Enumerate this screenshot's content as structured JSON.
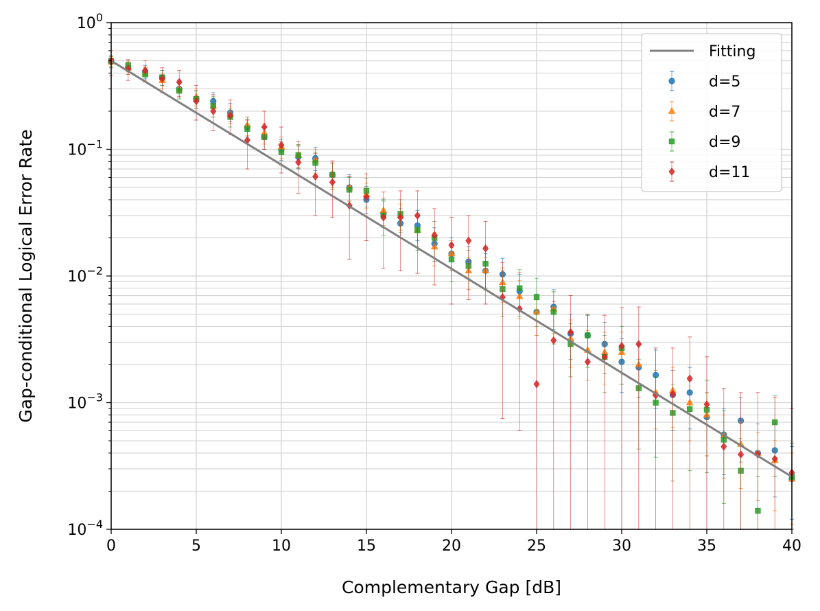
{
  "chart_data": {
    "type": "scatter",
    "xlabel": "Complementary Gap [dB]",
    "ylabel": "Gap-conditional Logical Error Rate",
    "xlim": [
      0,
      40
    ],
    "ylim": [
      0.0001,
      1
    ],
    "yscale": "log",
    "grid": "major and minor, both axes",
    "legend_placement": "top-right",
    "x_ticks": [
      "0",
      "5",
      "10",
      "15",
      "20",
      "25",
      "30",
      "35",
      "40"
    ],
    "y_ticks": [
      {
        "base": "10",
        "exp": "0",
        "value": 1
      },
      {
        "base": "10",
        "exp": "−1",
        "value": 0.1
      },
      {
        "base": "10",
        "exp": "−2",
        "value": 0.01
      },
      {
        "base": "10",
        "exp": "−3",
        "value": 0.001
      },
      {
        "base": "10",
        "exp": "−4",
        "value": 0.0001
      }
    ],
    "fit": {
      "name": "Fitting",
      "color": "#808080",
      "x": [
        0,
        40
      ],
      "y": [
        0.5,
        0.00026
      ]
    },
    "series": [
      {
        "name": "d=5",
        "marker": "circle",
        "color": "#1f77b4",
        "x": [
          0,
          1,
          2,
          3,
          4,
          5,
          6,
          7,
          8,
          9,
          10,
          11,
          12,
          13,
          14,
          15,
          16,
          17,
          18,
          19,
          20,
          21,
          22,
          23,
          24,
          25,
          26,
          27,
          28,
          29,
          30,
          31,
          32,
          33,
          34,
          35,
          36,
          37,
          38,
          39,
          40
        ],
        "y": [
          0.49,
          0.44,
          0.41,
          0.37,
          0.3,
          0.25,
          0.24,
          0.195,
          0.15,
          0.125,
          0.1,
          0.087,
          0.085,
          0.063,
          0.05,
          0.04,
          0.031,
          0.026,
          0.025,
          0.018,
          0.015,
          0.013,
          0.011,
          0.0103,
          0.0076,
          0.0052,
          0.0057,
          0.0035,
          0.0034,
          0.0029,
          0.0021,
          0.0019,
          0.00165,
          0.00115,
          0.0012,
          0.00077,
          0.00056,
          0.00072,
          0.0004,
          0.00042,
          0.00025
        ],
        "err_lo": [
          0.44,
          0.39,
          0.36,
          0.32,
          0.26,
          0.21,
          0.2,
          0.165,
          0.125,
          0.1,
          0.082,
          0.07,
          0.068,
          0.05,
          0.039,
          0.031,
          0.024,
          0.02,
          0.019,
          0.013,
          0.011,
          0.0095,
          0.008,
          0.0075,
          0.0053,
          0.0034,
          0.0038,
          0.0022,
          0.0021,
          0.0017,
          0.0012,
          0.0011,
          0.0009,
          0.0006,
          0.00062,
          0.00038,
          0.00027,
          0.00034,
          0.00017,
          0.00018,
          0.00012
        ],
        "err_hi": [
          0.54,
          0.49,
          0.46,
          0.42,
          0.35,
          0.29,
          0.28,
          0.23,
          0.18,
          0.15,
          0.12,
          0.106,
          0.104,
          0.078,
          0.063,
          0.051,
          0.04,
          0.034,
          0.033,
          0.024,
          0.02,
          0.017,
          0.015,
          0.0138,
          0.0103,
          0.0072,
          0.0078,
          0.005,
          0.0049,
          0.0043,
          0.0032,
          0.0029,
          0.0026,
          0.0018,
          0.0019,
          0.0012,
          0.0009,
          0.0011,
          0.00068,
          0.0007,
          0.00045
        ]
      },
      {
        "name": "d=7",
        "marker": "triangle",
        "color": "#ff7f0e",
        "x": [
          0,
          1,
          2,
          3,
          4,
          5,
          6,
          7,
          8,
          9,
          10,
          11,
          12,
          13,
          14,
          15,
          16,
          17,
          18,
          19,
          20,
          21,
          22,
          23,
          24,
          25,
          26,
          27,
          28,
          29,
          30,
          31,
          32,
          33,
          34,
          35,
          36,
          37,
          38,
          39,
          40
        ],
        "y": [
          0.49,
          0.44,
          0.4,
          0.35,
          0.3,
          0.26,
          0.22,
          0.19,
          0.155,
          0.135,
          0.105,
          0.09,
          0.082,
          0.064,
          0.05,
          0.044,
          0.033,
          0.03,
          0.023,
          0.017,
          0.015,
          0.011,
          0.011,
          0.0089,
          0.0069,
          0.0052,
          0.0055,
          0.0032,
          0.0026,
          0.0025,
          0.0025,
          0.002,
          0.0012,
          0.00125,
          0.001,
          0.0008,
          0.00055,
          0.00047,
          0.0004,
          0.00035,
          0.00025
        ],
        "err_lo": [
          0.44,
          0.39,
          0.35,
          0.3,
          0.26,
          0.22,
          0.18,
          0.16,
          0.128,
          0.11,
          0.085,
          0.072,
          0.065,
          0.05,
          0.039,
          0.034,
          0.025,
          0.023,
          0.017,
          0.012,
          0.011,
          0.0078,
          0.0077,
          0.0062,
          0.0046,
          0.0034,
          0.0035,
          0.0019,
          0.0015,
          0.0014,
          0.0014,
          0.0011,
          0.00062,
          0.00064,
          0.0005,
          0.00038,
          0.00025,
          0.00021,
          0.00017,
          0.00014,
          0.00011
        ],
        "err_hi": [
          0.54,
          0.49,
          0.45,
          0.4,
          0.34,
          0.3,
          0.26,
          0.22,
          0.18,
          0.16,
          0.125,
          0.108,
          0.099,
          0.078,
          0.061,
          0.054,
          0.041,
          0.037,
          0.029,
          0.022,
          0.019,
          0.014,
          0.014,
          0.0116,
          0.0092,
          0.007,
          0.0075,
          0.0045,
          0.0037,
          0.0036,
          0.0036,
          0.0029,
          0.0018,
          0.0019,
          0.0015,
          0.0012,
          0.0008,
          0.0007,
          0.00058,
          0.0005,
          0.0004
        ]
      },
      {
        "name": "d=9",
        "marker": "square",
        "color": "#2ca02c",
        "x": [
          0,
          1,
          2,
          3,
          4,
          5,
          6,
          7,
          8,
          9,
          10,
          11,
          12,
          13,
          14,
          15,
          16,
          17,
          18,
          19,
          20,
          21,
          22,
          23,
          24,
          25,
          26,
          27,
          28,
          29,
          30,
          31,
          32,
          33,
          34,
          35,
          36,
          37,
          38,
          39,
          40
        ],
        "y": [
          0.5,
          0.46,
          0.39,
          0.37,
          0.29,
          0.25,
          0.22,
          0.18,
          0.145,
          0.125,
          0.095,
          0.09,
          0.078,
          0.063,
          0.048,
          0.047,
          0.03,
          0.031,
          0.023,
          0.02,
          0.0135,
          0.012,
          0.0125,
          0.0079,
          0.008,
          0.0068,
          0.0052,
          0.0029,
          0.0034,
          0.0023,
          0.0027,
          0.0013,
          0.001,
          0.00083,
          0.00089,
          0.00088,
          0.00051,
          0.00029,
          0.00014,
          0.0007,
          0.00026
        ],
        "err_lo": [
          0.45,
          0.41,
          0.34,
          0.32,
          0.25,
          0.21,
          0.18,
          0.15,
          0.118,
          0.1,
          0.075,
          0.071,
          0.061,
          0.048,
          0.036,
          0.035,
          0.021,
          0.022,
          0.016,
          0.013,
          0.009,
          0.0078,
          0.008,
          0.0048,
          0.0048,
          0.004,
          0.0029,
          0.0016,
          0.0019,
          0.0012,
          0.0014,
          0.00043,
          0.00037,
          0.00024,
          0.00029,
          0.00028,
          0.00016,
          9e-05,
          3e-05,
          0.00026,
          8e-05
        ],
        "err_hi": [
          0.55,
          0.51,
          0.44,
          0.42,
          0.33,
          0.29,
          0.26,
          0.21,
          0.172,
          0.15,
          0.115,
          0.109,
          0.095,
          0.078,
          0.06,
          0.059,
          0.039,
          0.04,
          0.03,
          0.027,
          0.018,
          0.016,
          0.017,
          0.011,
          0.0112,
          0.0096,
          0.0075,
          0.0042,
          0.0049,
          0.0034,
          0.004,
          0.0022,
          0.0016,
          0.0014,
          0.0015,
          0.0015,
          0.00086,
          0.00052,
          0.00026,
          0.00114,
          0.00048
        ]
      },
      {
        "name": "d=11",
        "marker": "diamond",
        "color": "#d62728",
        "x": [
          0,
          1,
          2,
          3,
          4,
          5,
          6,
          7,
          8,
          9,
          10,
          11,
          12,
          13,
          14,
          15,
          16,
          17,
          18,
          19,
          20,
          21,
          22,
          23,
          24,
          25,
          26,
          27,
          28,
          29,
          30,
          31,
          32,
          33,
          34,
          35,
          36,
          37,
          38,
          39,
          40
        ],
        "y": [
          0.5,
          0.43,
          0.42,
          0.36,
          0.34,
          0.24,
          0.2,
          0.185,
          0.118,
          0.15,
          0.108,
          0.079,
          0.061,
          0.055,
          0.036,
          0.042,
          0.029,
          0.029,
          0.03,
          0.021,
          0.0175,
          0.019,
          0.0165,
          0.0068,
          0.0055,
          0.0014,
          0.0031,
          0.0036,
          0.0021,
          0.0023,
          0.0028,
          0.0029,
          0.00114,
          0.00117,
          0.00155,
          0.00097,
          0.00045,
          0.00039,
          0.00039,
          0.00036,
          0.00028
        ],
        "err_lo": [
          0.38,
          0.35,
          0.34,
          0.28,
          0.26,
          0.17,
          0.14,
          0.13,
          0.07,
          0.1,
          0.065,
          0.045,
          0.03,
          0.029,
          0.0135,
          0.019,
          0.0115,
          0.011,
          0.0105,
          0.0085,
          0.006,
          0.0065,
          0.006,
          0.00075,
          0.0006,
          1e-05,
          1e-05,
          1e-05,
          1e-05,
          1e-05,
          1e-05,
          1e-05,
          1e-05,
          1e-05,
          1e-05,
          1e-05,
          1e-05,
          1e-05,
          1e-05,
          1e-05,
          1e-05
        ],
        "err_hi": [
          0.6,
          0.51,
          0.5,
          0.44,
          0.42,
          0.32,
          0.27,
          0.245,
          0.17,
          0.2,
          0.15,
          0.115,
          0.093,
          0.081,
          0.061,
          0.064,
          0.046,
          0.047,
          0.047,
          0.034,
          0.029,
          0.03,
          0.027,
          0.0128,
          0.0106,
          0.0044,
          0.0063,
          0.007,
          0.005,
          0.0049,
          0.0056,
          0.0057,
          0.0027,
          0.0027,
          0.0033,
          0.0023,
          0.0013,
          0.0012,
          0.0012,
          0.0011,
          0.0009
        ]
      }
    ]
  }
}
